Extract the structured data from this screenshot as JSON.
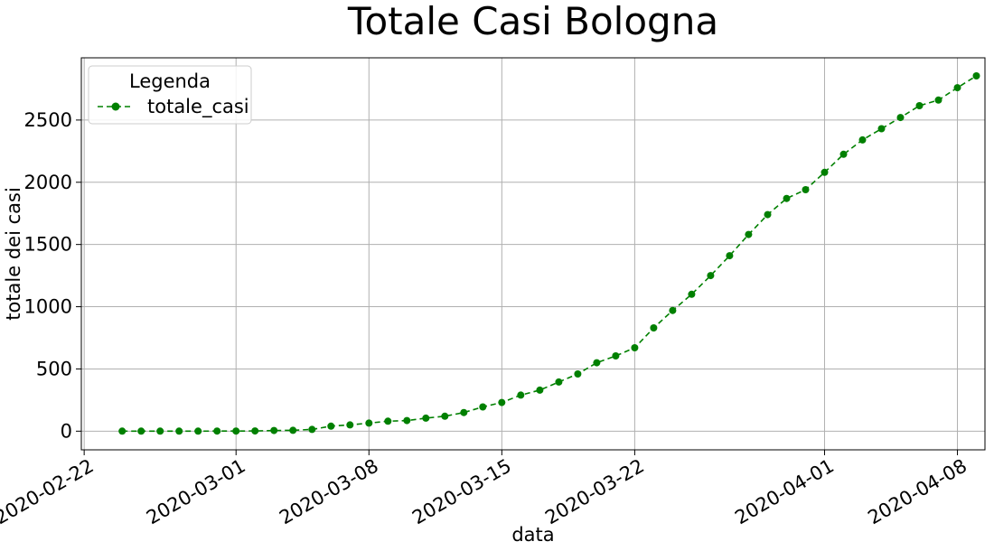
{
  "chart_data": {
    "type": "line",
    "title": "Totale Casi Bologna",
    "xlabel": "data",
    "ylabel": "totale dei casi",
    "x_ticks": [
      "2020-02-22",
      "2020-03-01",
      "2020-03-08",
      "2020-03-15",
      "2020-03-22",
      "2020-04-01",
      "2020-04-08"
    ],
    "y_ticks": [
      0,
      500,
      1000,
      1500,
      2000,
      2500
    ],
    "ylim": [
      -150,
      3000
    ],
    "xlim": [
      "2020-02-22",
      "2020-04-09"
    ],
    "grid": true,
    "legend": {
      "title": "Legenda",
      "placement": "top-left"
    },
    "color": "#008000",
    "line_style": "dashed",
    "marker": "circle",
    "series": [
      {
        "name": "totale_casi",
        "x": [
          "2020-02-24",
          "2020-02-25",
          "2020-02-26",
          "2020-02-27",
          "2020-02-28",
          "2020-02-29",
          "2020-03-01",
          "2020-03-02",
          "2020-03-03",
          "2020-03-04",
          "2020-03-05",
          "2020-03-06",
          "2020-03-07",
          "2020-03-08",
          "2020-03-09",
          "2020-03-10",
          "2020-03-11",
          "2020-03-12",
          "2020-03-13",
          "2020-03-14",
          "2020-03-15",
          "2020-03-16",
          "2020-03-17",
          "2020-03-18",
          "2020-03-19",
          "2020-03-20",
          "2020-03-21",
          "2020-03-22",
          "2020-03-23",
          "2020-03-24",
          "2020-03-25",
          "2020-03-26",
          "2020-03-27",
          "2020-03-28",
          "2020-03-29",
          "2020-03-30",
          "2020-03-31",
          "2020-04-01",
          "2020-04-02",
          "2020-04-03",
          "2020-04-04",
          "2020-04-05",
          "2020-04-06",
          "2020-04-07",
          "2020-04-08",
          "2020-04-09"
        ],
        "values": [
          0,
          0,
          0,
          0,
          0,
          1,
          1,
          2,
          5,
          7,
          14,
          40,
          50,
          65,
          80,
          85,
          105,
          120,
          150,
          195,
          230,
          290,
          330,
          395,
          460,
          550,
          605,
          670,
          830,
          970,
          1100,
          1250,
          1410,
          1580,
          1740,
          1870,
          1940,
          2080,
          2225,
          2340,
          2430,
          2520,
          2615,
          2660,
          2760,
          2855
        ]
      }
    ]
  }
}
